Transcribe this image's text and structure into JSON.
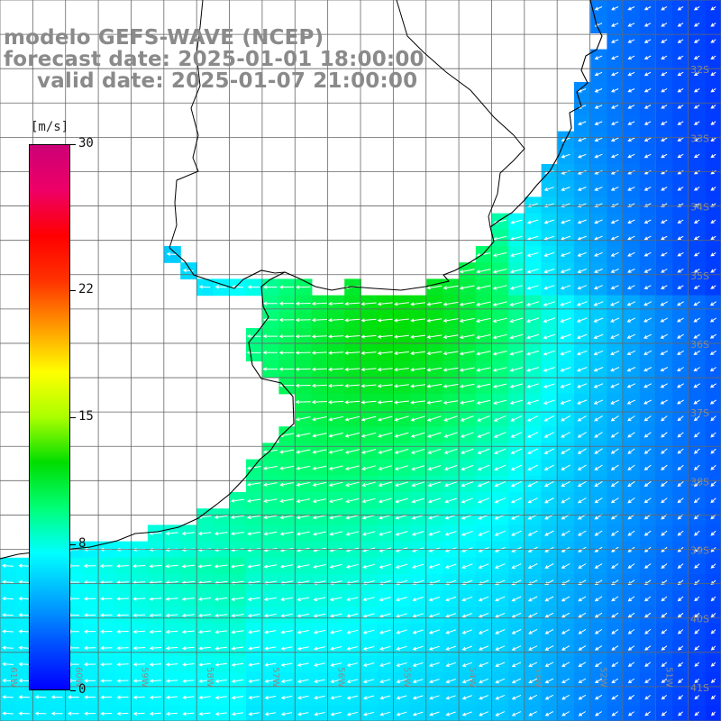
{
  "titles": {
    "line1": "modelo GEFS-WAVE (NCEP)",
    "line2": "forecast date: 2025-01-01 18:00:00",
    "line3": "valid date: 2025-01-07 21:00:00"
  },
  "colorbar": {
    "units": "[m/s]",
    "ticks": [
      "30",
      "22",
      "15",
      "8",
      "0"
    ],
    "tick_values": [
      30,
      22,
      15,
      8,
      0
    ],
    "min": 0,
    "max": 30,
    "colors": [
      "#0000ff",
      "#0050ff",
      "#00aaff",
      "#00ffff",
      "#00ff77",
      "#00dd00",
      "#aaff00",
      "#ffff00",
      "#ff9900",
      "#ff3300",
      "#ff0000",
      "#ee0066",
      "#cc0077"
    ]
  },
  "grid": {
    "lat_labels": [
      "32S",
      "33S",
      "34S",
      "35S",
      "36S",
      "37S",
      "38S",
      "39S",
      "40S",
      "41S"
    ],
    "lat_values": [
      -32,
      -33,
      -34,
      -35,
      -36,
      -37,
      -38,
      -39,
      -40,
      -41
    ],
    "lon_labels": [
      "61W",
      "60W",
      "59W",
      "58W",
      "57W",
      "56W",
      "55W",
      "54W",
      "53W",
      "52W",
      "51W"
    ],
    "lon_values": [
      -61,
      -60,
      -59,
      -58,
      -57,
      -56,
      -55,
      -54,
      -53,
      -52,
      -51
    ],
    "lat_range": [
      -41.5,
      -31.0
    ],
    "lon_range": [
      -61.0,
      -50.0
    ]
  },
  "colors": {
    "background": "#ffffff",
    "gridline": "#666666",
    "coastline": "#000000",
    "arrow": "#ffffff",
    "title": "#8a8a8a"
  }
}
